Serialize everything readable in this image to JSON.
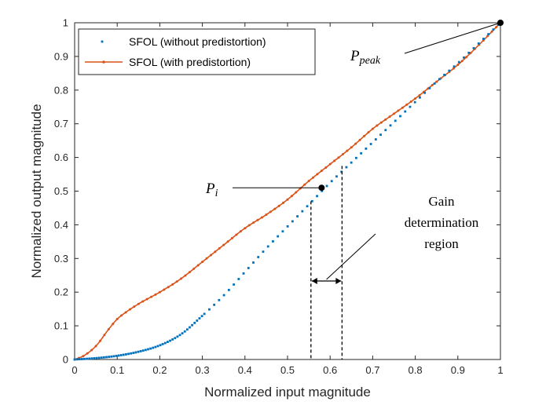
{
  "chart_data": {
    "type": "line",
    "title": "",
    "xlabel": "Normalized input magnitude",
    "ylabel": "Normalized output magnitude",
    "xlim": [
      0,
      1
    ],
    "ylim": [
      0,
      1
    ],
    "xticks": [
      0,
      0.1,
      0.2,
      0.3,
      0.4,
      0.5,
      0.6,
      0.7,
      0.8,
      0.9,
      1
    ],
    "yticks": [
      0,
      0.1,
      0.2,
      0.3,
      0.4,
      0.5,
      0.6,
      0.7,
      0.8,
      0.9,
      1
    ],
    "xtick_labels": [
      "0",
      "0.1",
      "0.2",
      "0.3",
      "0.4",
      "0.5",
      "0.6",
      "0.7",
      "0.8",
      "0.9",
      "1"
    ],
    "ytick_labels": [
      "0",
      "0.1",
      "0.2",
      "0.3",
      "0.4",
      "0.5",
      "0.6",
      "0.7",
      "0.8",
      "0.9",
      "1"
    ],
    "grid": false,
    "legend_location": "top-left",
    "series": [
      {
        "name": "SFOL (without predistortion)",
        "style": "dotted-markers",
        "color": "#0072BD",
        "x": [
          0,
          0.05,
          0.1,
          0.15,
          0.2,
          0.25,
          0.3,
          0.35,
          0.4,
          0.45,
          0.5,
          0.55,
          0.6,
          0.65,
          0.7,
          0.75,
          0.8,
          0.85,
          0.9,
          0.95,
          1
        ],
        "y": [
          0,
          0.004,
          0.011,
          0.023,
          0.042,
          0.075,
          0.13,
          0.19,
          0.26,
          0.33,
          0.395,
          0.46,
          0.525,
          0.585,
          0.645,
          0.705,
          0.765,
          0.825,
          0.88,
          0.94,
          1
        ]
      },
      {
        "name": "SFOL (with predistortion)",
        "style": "line-markers",
        "color": "#D95319",
        "x": [
          0,
          0.02,
          0.05,
          0.08,
          0.1,
          0.12,
          0.15,
          0.2,
          0.25,
          0.3,
          0.35,
          0.4,
          0.45,
          0.5,
          0.55,
          0.6,
          0.65,
          0.7,
          0.75,
          0.8,
          0.85,
          0.9,
          0.95,
          1
        ],
        "y": [
          0,
          0.01,
          0.04,
          0.09,
          0.12,
          0.14,
          0.165,
          0.2,
          0.24,
          0.29,
          0.34,
          0.39,
          0.43,
          0.475,
          0.53,
          0.58,
          0.63,
          0.685,
          0.73,
          0.775,
          0.825,
          0.875,
          0.935,
          1
        ]
      }
    ],
    "annotations": {
      "p_peak": {
        "label": "P",
        "subscript": "peak",
        "x": 1,
        "y": 1
      },
      "p_i": {
        "label": "P",
        "subscript": "i",
        "x": 0.58,
        "y": 0.51
      },
      "gain_region": {
        "label_lines": [
          "Gain",
          "determination",
          "region"
        ],
        "x_start": 0.555,
        "x_end": 0.628,
        "y_start_top": 0.47,
        "y_end_top": 0.575
      }
    }
  }
}
